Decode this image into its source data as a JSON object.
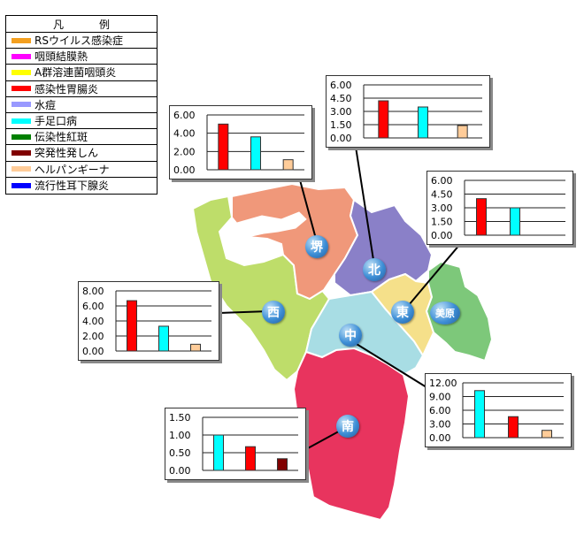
{
  "legend": {
    "title_left": "凡",
    "title_right": "例",
    "items": [
      {
        "label": "RSウイルス感染症",
        "color": "#f4a020"
      },
      {
        "label": "咽頭結膜熱",
        "color": "#ff00ff"
      },
      {
        "label": "A群溶連菌咽頭炎",
        "color": "#ffff00"
      },
      {
        "label": "感染性胃腸炎",
        "color": "#ff0000"
      },
      {
        "label": "水痘",
        "color": "#9999ff"
      },
      {
        "label": "手足口病",
        "color": "#00ffff"
      },
      {
        "label": "伝染性紅斑",
        "color": "#008000"
      },
      {
        "label": "突発性発しん",
        "color": "#800000"
      },
      {
        "label": "ヘルパンギーナ",
        "color": "#ffcc99"
      },
      {
        "label": "流行性耳下腺炎",
        "color": "#0000ff"
      }
    ]
  },
  "districts": [
    {
      "name": "堺",
      "color": "#f0987a"
    },
    {
      "name": "北",
      "color": "#8a80c8"
    },
    {
      "name": "東",
      "color": "#f5e08a"
    },
    {
      "name": "美原",
      "color": "#7dc87a"
    },
    {
      "name": "西",
      "color": "#bedd6a"
    },
    {
      "name": "中",
      "color": "#a8dde4"
    },
    {
      "name": "南",
      "color": "#e8345e"
    }
  ],
  "chart_data": [
    {
      "type": "bar",
      "district": "堺",
      "ylim": [
        0,
        6
      ],
      "ticks": [
        "6.00",
        "4.00",
        "2.00",
        "0.00"
      ],
      "series": [
        {
          "color": "#ff0000",
          "value": 5.0
        },
        {
          "color": "#00ffff",
          "value": 3.6
        },
        {
          "color": "#ffcc99",
          "value": 1.1
        }
      ]
    },
    {
      "type": "bar",
      "district": "北",
      "ylim": [
        0,
        6
      ],
      "ticks": [
        "6.00",
        "4.50",
        "3.00",
        "1.50",
        "0.00"
      ],
      "series": [
        {
          "color": "#ff0000",
          "value": 4.2
        },
        {
          "color": "#00ffff",
          "value": 3.5
        },
        {
          "color": "#ffcc99",
          "value": 1.4
        }
      ]
    },
    {
      "type": "bar",
      "district": "東",
      "ylim": [
        0,
        6
      ],
      "ticks": [
        "6.00",
        "4.50",
        "3.00",
        "1.50",
        "0.00"
      ],
      "series": [
        {
          "color": "#ff0000",
          "value": 4.0
        },
        {
          "color": "#00ffff",
          "value": 3.0
        }
      ]
    },
    {
      "type": "bar",
      "district": "西",
      "ylim": [
        0,
        8
      ],
      "ticks": [
        "8.00",
        "6.00",
        "4.00",
        "2.00",
        "0.00"
      ],
      "series": [
        {
          "color": "#ff0000",
          "value": 6.7
        },
        {
          "color": "#00ffff",
          "value": 3.3
        },
        {
          "color": "#ffcc99",
          "value": 0.9
        }
      ]
    },
    {
      "type": "bar",
      "district": "中",
      "ylim": [
        0,
        12
      ],
      "ticks": [
        "12.00",
        "9.00",
        "6.00",
        "3.00",
        "0.00"
      ],
      "series": [
        {
          "color": "#00ffff",
          "value": 10.3
        },
        {
          "color": "#ff0000",
          "value": 4.6
        },
        {
          "color": "#ffcc99",
          "value": 1.6
        }
      ]
    },
    {
      "type": "bar",
      "district": "南",
      "ylim": [
        0,
        1.5
      ],
      "ticks": [
        "1.50",
        "1.00",
        "0.50",
        "0.00"
      ],
      "series": [
        {
          "color": "#00ffff",
          "value": 1.0
        },
        {
          "color": "#ff0000",
          "value": 0.67
        },
        {
          "color": "#800000",
          "value": 0.33
        }
      ]
    }
  ]
}
